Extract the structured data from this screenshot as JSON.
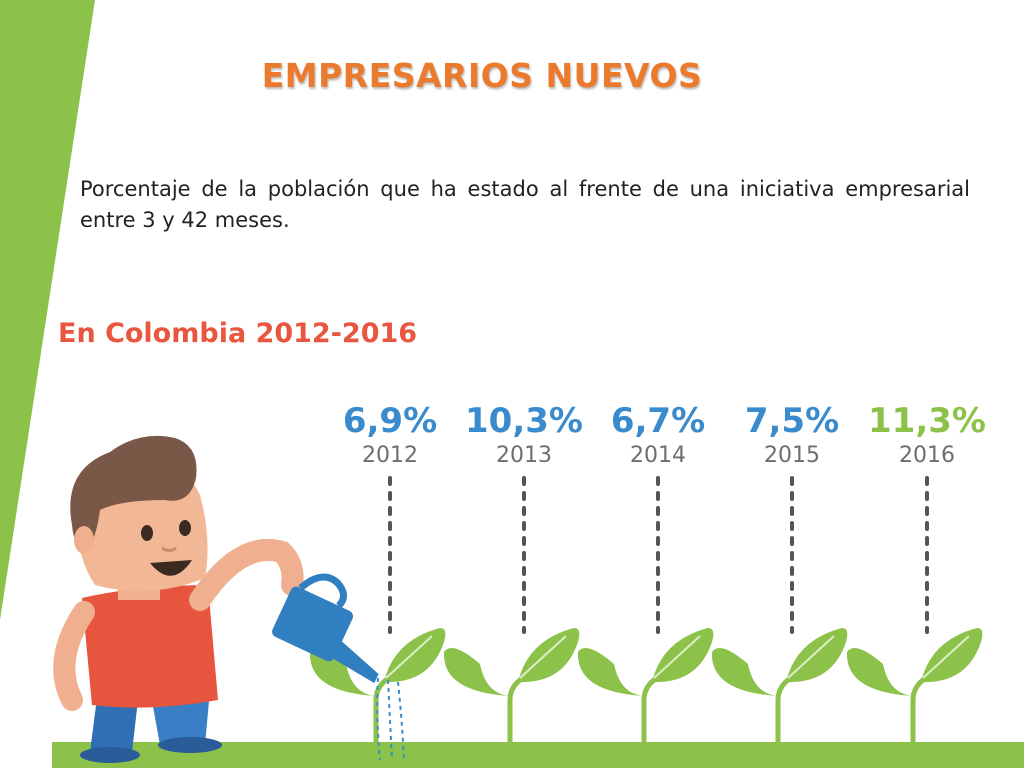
{
  "slide": {
    "title": "EMPRESARIOS NUEVOS",
    "description": "Porcentaje de la población que ha estado al frente de una iniciativa empresarial entre 3 y 42 meses.",
    "subtitle": "En Colombia 2012-2016"
  },
  "colors": {
    "accent_green": "#8cc24a",
    "title_orange": "#ec7a2c",
    "subtitle_red": "#e8563f",
    "value_blue": "#3a8bcd",
    "value_green": "#8cc24a",
    "year_gray": "#6e6e6e"
  },
  "chart_data": {
    "type": "table",
    "title": "En Colombia 2012-2016",
    "unit": "%",
    "categories": [
      "2012",
      "2013",
      "2014",
      "2015",
      "2016"
    ],
    "values": [
      6.9,
      10.3,
      6.7,
      7.5,
      11.3
    ],
    "value_labels": [
      "6,9%",
      "10,3%",
      "6,7%",
      "7,5%",
      "11,3%"
    ],
    "highlight_index": 4
  }
}
